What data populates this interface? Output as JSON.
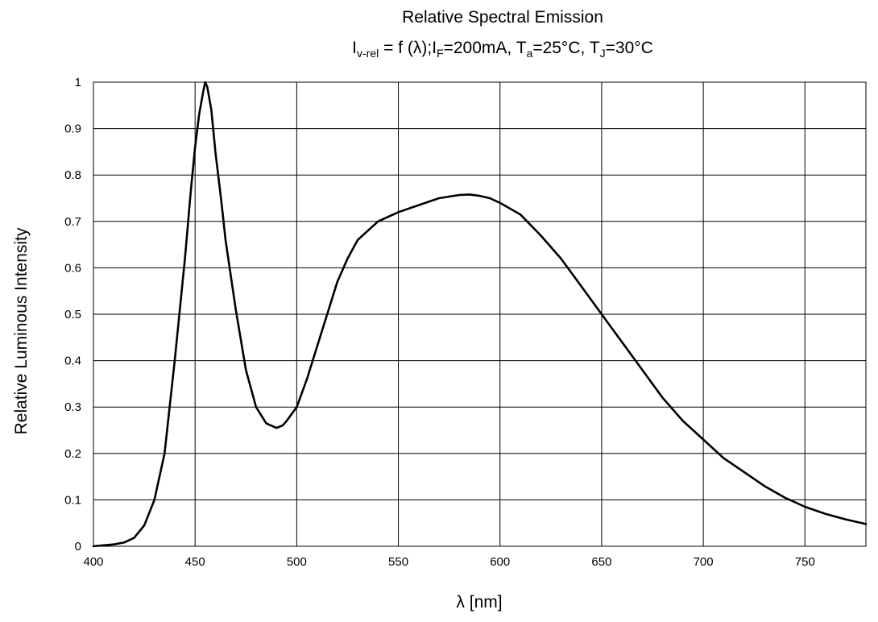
{
  "chart_data": {
    "type": "line",
    "title": "Relative Spectral Emission",
    "subtitle_parts": {
      "iv_base": "I",
      "iv_sub": "v-rel",
      "formula": " = f (λ);",
      "if_base": "I",
      "if_sub": "F",
      "if_value": "=200mA, ",
      "ta_base": "T",
      "ta_sub": "a",
      "ta_value": "=25°C, ",
      "tj_base": "T",
      "tj_sub": "J",
      "tj_value": "=30°C"
    },
    "xlabel": "λ [nm]",
    "ylabel": "Relative Luminous Intensity",
    "xlim": [
      400,
      780
    ],
    "ylim": [
      0,
      1
    ],
    "x_ticks": [
      400,
      450,
      500,
      550,
      600,
      650,
      700,
      750
    ],
    "y_ticks": [
      0,
      0.1,
      0.2,
      0.3,
      0.4,
      0.5,
      0.6,
      0.7,
      0.8,
      0.9,
      1
    ],
    "y_tick_labels": [
      "0",
      "0.1",
      "0.2",
      "0.3",
      "0.4",
      "0.5",
      "0.6",
      "0.7",
      "0.8",
      "0.9",
      "1"
    ],
    "grid": true,
    "series": [
      {
        "x": [
          400,
          405,
          410,
          415,
          420,
          425,
          430,
          435,
          440,
          445,
          448,
          450,
          452,
          454,
          455,
          456,
          458,
          460,
          463,
          465,
          470,
          475,
          480,
          485,
          490,
          493,
          495,
          500,
          505,
          510,
          515,
          520,
          525,
          530,
          540,
          550,
          560,
          570,
          580,
          585,
          590,
          595,
          600,
          610,
          620,
          630,
          640,
          650,
          660,
          670,
          680,
          690,
          700,
          710,
          720,
          730,
          740,
          750,
          760,
          770,
          780
        ],
        "y": [
          0.0,
          0.002,
          0.004,
          0.008,
          0.018,
          0.045,
          0.1,
          0.2,
          0.4,
          0.62,
          0.77,
          0.86,
          0.93,
          0.98,
          1.0,
          0.99,
          0.94,
          0.85,
          0.74,
          0.66,
          0.51,
          0.38,
          0.3,
          0.265,
          0.255,
          0.26,
          0.27,
          0.3,
          0.36,
          0.43,
          0.5,
          0.57,
          0.62,
          0.66,
          0.7,
          0.72,
          0.735,
          0.75,
          0.757,
          0.758,
          0.755,
          0.75,
          0.74,
          0.715,
          0.67,
          0.62,
          0.56,
          0.5,
          0.44,
          0.38,
          0.32,
          0.27,
          0.23,
          0.19,
          0.16,
          0.13,
          0.105,
          0.085,
          0.07,
          0.058,
          0.048
        ]
      }
    ]
  }
}
